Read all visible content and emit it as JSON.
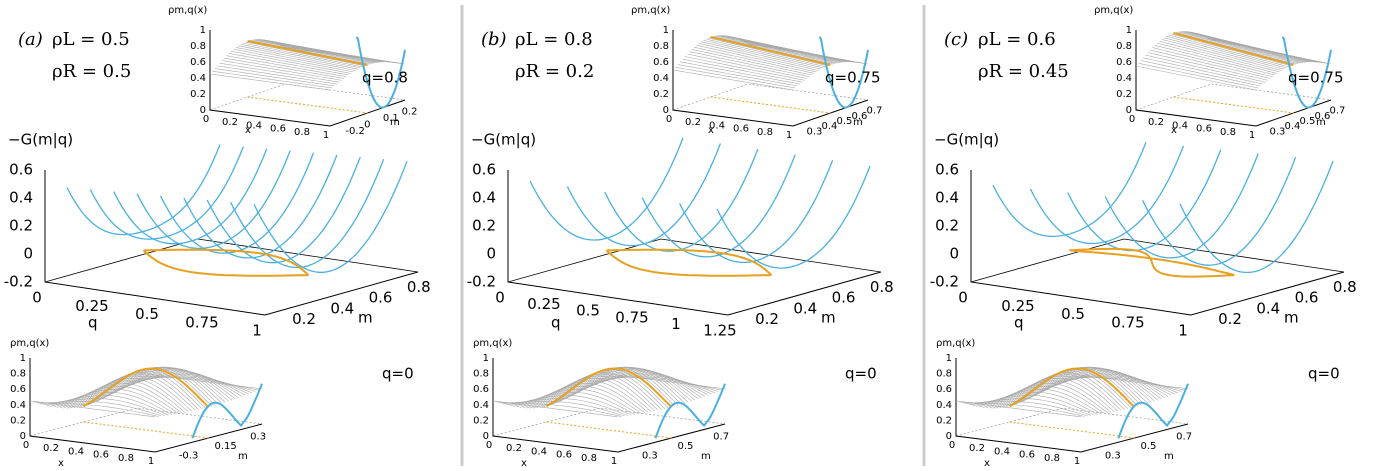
{
  "panels": [
    {
      "label": "(a)",
      "rho_L": "ρL = 0.5",
      "rho_R": "ρR = 0.5",
      "top": {
        "z_label": "ρm,q(x)",
        "z_ticks": [
          "0",
          "0.2",
          "0.4",
          "0.6",
          "0.8",
          "1"
        ],
        "x_label": "x",
        "x_ticks": [
          "0",
          "0.2",
          "0.4",
          "0.6",
          "0.8",
          "1"
        ],
        "m_label": "m",
        "m_ticks": [
          "-0.2",
          "0",
          "0.1",
          "0.2"
        ],
        "q_label": "q=0.8"
      },
      "main": {
        "z_label": "−G(m|q)",
        "z_ticks": [
          "-0.2",
          "0",
          "0.2",
          "0.4",
          "0.6"
        ],
        "q_label": "q",
        "q_ticks": [
          "0",
          "0.25",
          "0.5",
          "0.75",
          "1"
        ],
        "m_label": "m",
        "m_ticks": [
          "0.2",
          "0.4",
          "0.6",
          "0.8"
        ]
      },
      "bottom": {
        "z_label": "ρm,q(x)",
        "z_ticks": [
          "0",
          "0.2",
          "0.4",
          "0.6",
          "0.8",
          "1"
        ],
        "x_label": "x",
        "x_ticks": [
          "0",
          "0.2",
          "0.4",
          "0.6",
          "0.8",
          "1"
        ],
        "m_label": "m",
        "m_ticks": [
          "-0.3",
          "0.15",
          "0.3"
        ],
        "q_label": "q=0"
      }
    },
    {
      "label": "(b)",
      "rho_L": "ρL = 0.8",
      "rho_R": "ρR = 0.2",
      "top": {
        "z_label": "ρm,q(x)",
        "z_ticks": [
          "0",
          "0.2",
          "0.4",
          "0.6",
          "0.8",
          "1"
        ],
        "x_label": "x",
        "x_ticks": [
          "0",
          "0.2",
          "0.4",
          "0.6",
          "0.8",
          "1"
        ],
        "m_label": "m",
        "m_ticks": [
          "0.3",
          "0.4",
          "0.5",
          "0.6",
          "0.7"
        ],
        "q_label": "q=0.75"
      },
      "main": {
        "z_label": "−G(m|q)",
        "z_ticks": [
          "-0.2",
          "0",
          "0.2",
          "0.4",
          "0.6"
        ],
        "q_label": "q",
        "q_ticks": [
          "0",
          "0.25",
          "0.5",
          "0.75",
          "1",
          "1.25"
        ],
        "m_label": "m",
        "m_ticks": [
          "0.2",
          "0.4",
          "0.6",
          "0.8"
        ]
      },
      "bottom": {
        "z_label": "ρm,q(x)",
        "z_ticks": [
          "0",
          "0.2",
          "0.4",
          "0.6",
          "0.8",
          "1"
        ],
        "x_label": "x",
        "x_ticks": [
          "0",
          "0.2",
          "0.4",
          "0.6",
          "0.8",
          "1"
        ],
        "m_label": "m",
        "m_ticks": [
          "0.3",
          "0.5",
          "0.7"
        ],
        "q_label": "q=0"
      }
    },
    {
      "label": "(c)",
      "rho_L": "ρL = 0.6",
      "rho_R": "ρR = 0.45",
      "top": {
        "z_label": "ρm,q(x)",
        "z_ticks": [
          "0",
          "0.2",
          "0.4",
          "0.6",
          "0.8",
          "1"
        ],
        "x_label": "x",
        "x_ticks": [
          "0",
          "0.2",
          "0.4",
          "0.6",
          "0.8",
          "1"
        ],
        "m_label": "m",
        "m_ticks": [
          "0.3",
          "0.4",
          "0.5",
          "0.6",
          "0.7"
        ],
        "q_label": "q=0.75"
      },
      "main": {
        "z_label": "−G(m|q)",
        "z_ticks": [
          "-0.2",
          "0",
          "0.2",
          "0.4",
          "0.6"
        ],
        "q_label": "q",
        "q_ticks": [
          "0",
          "0.25",
          "0.5",
          "0.75",
          "1"
        ],
        "m_label": "m",
        "m_ticks": [
          "0.2",
          "0.4",
          "0.6",
          "0.8"
        ]
      },
      "bottom": {
        "z_label": "ρm,q(x)",
        "z_ticks": [
          "0",
          "0.2",
          "0.4",
          "0.6",
          "0.8",
          "1"
        ],
        "x_label": "x",
        "x_ticks": [
          "0",
          "0.2",
          "0.4",
          "0.6",
          "0.8",
          "1"
        ],
        "m_label": "m",
        "m_ticks": [
          "0.3",
          "0.5",
          "0.7"
        ],
        "q_label": "q=0"
      }
    }
  ]
}
